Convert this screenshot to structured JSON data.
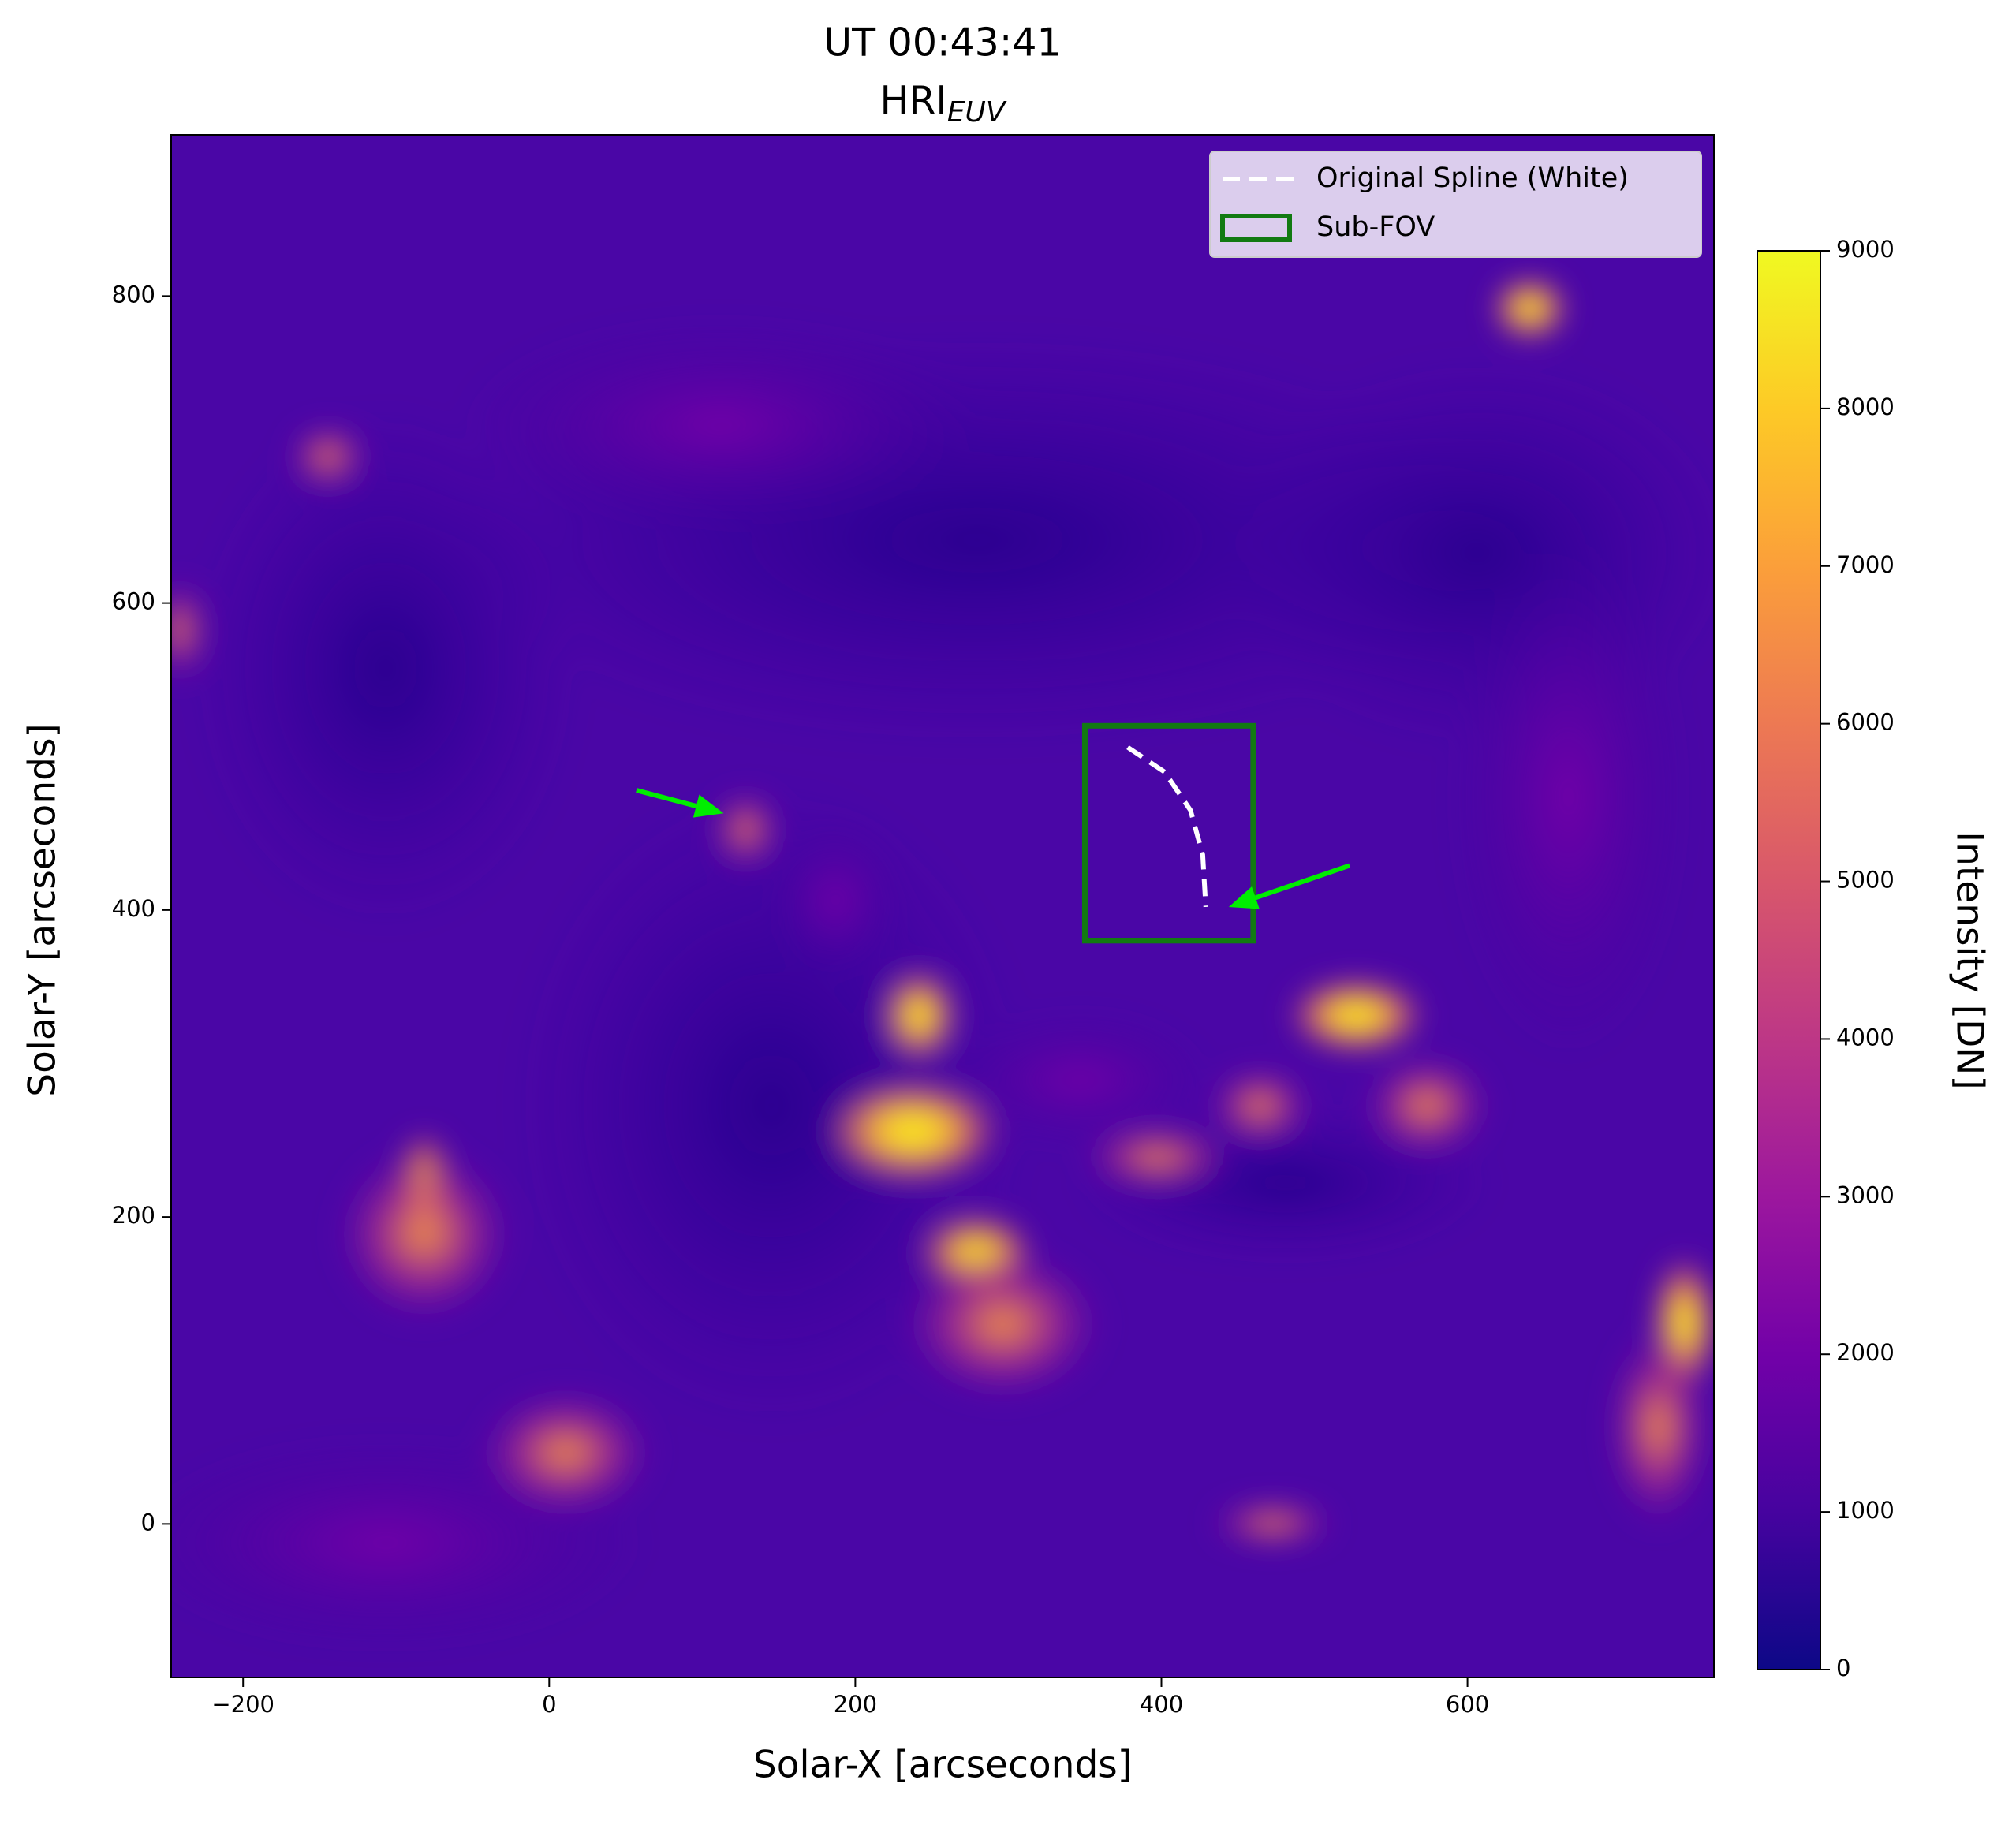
{
  "chart_data": {
    "type": "image",
    "title": "UT 00:43:41",
    "subtitle": "HRI",
    "subtitle_subscript": "EUV",
    "x_label": "Solar-X [arcseconds]",
    "y_label": "Solar-Y [arcseconds]",
    "xlim": [
      -247,
      761
    ],
    "ylim": [
      -100,
      905
    ],
    "xticks": [
      {
        "value": -200,
        "label": "−200"
      },
      0,
      200,
      400,
      600
    ],
    "yticks": [
      0,
      200,
      400,
      600,
      800
    ],
    "colormap": [
      "#0d0887",
      "#46039f",
      "#7201a8",
      "#9c179e",
      "#bd3786",
      "#d8576b",
      "#ed7953",
      "#fb9f3a",
      "#fdca26",
      "#f0f921"
    ],
    "colorbar": {
      "label": "Intensity [DN]",
      "lim": [
        0,
        9000
      ],
      "ticks": [
        0,
        1000,
        2000,
        3000,
        4000,
        5000,
        6000,
        7000,
        8000,
        9000
      ]
    },
    "legend": "upper right",
    "series": [
      {
        "name": "Original Spline (White)",
        "kind": "line",
        "color": "#ffffff",
        "dashed": true,
        "x": [
          378,
          402,
          419,
          427,
          429
        ],
        "y": [
          506,
          490,
          465,
          436,
          402
        ]
      },
      {
        "name": "Sub-FOV",
        "kind": "rect",
        "color": "#127a12",
        "x": [
          350,
          460
        ],
        "y": [
          380,
          520
        ]
      }
    ],
    "arrows": [
      {
        "color": "#00ee00",
        "x": [
          57,
          114
        ],
        "y": [
          478,
          463
        ]
      },
      {
        "color": "#00ee00",
        "x": [
          523,
          444
        ],
        "y": [
          429,
          402
        ]
      }
    ]
  }
}
